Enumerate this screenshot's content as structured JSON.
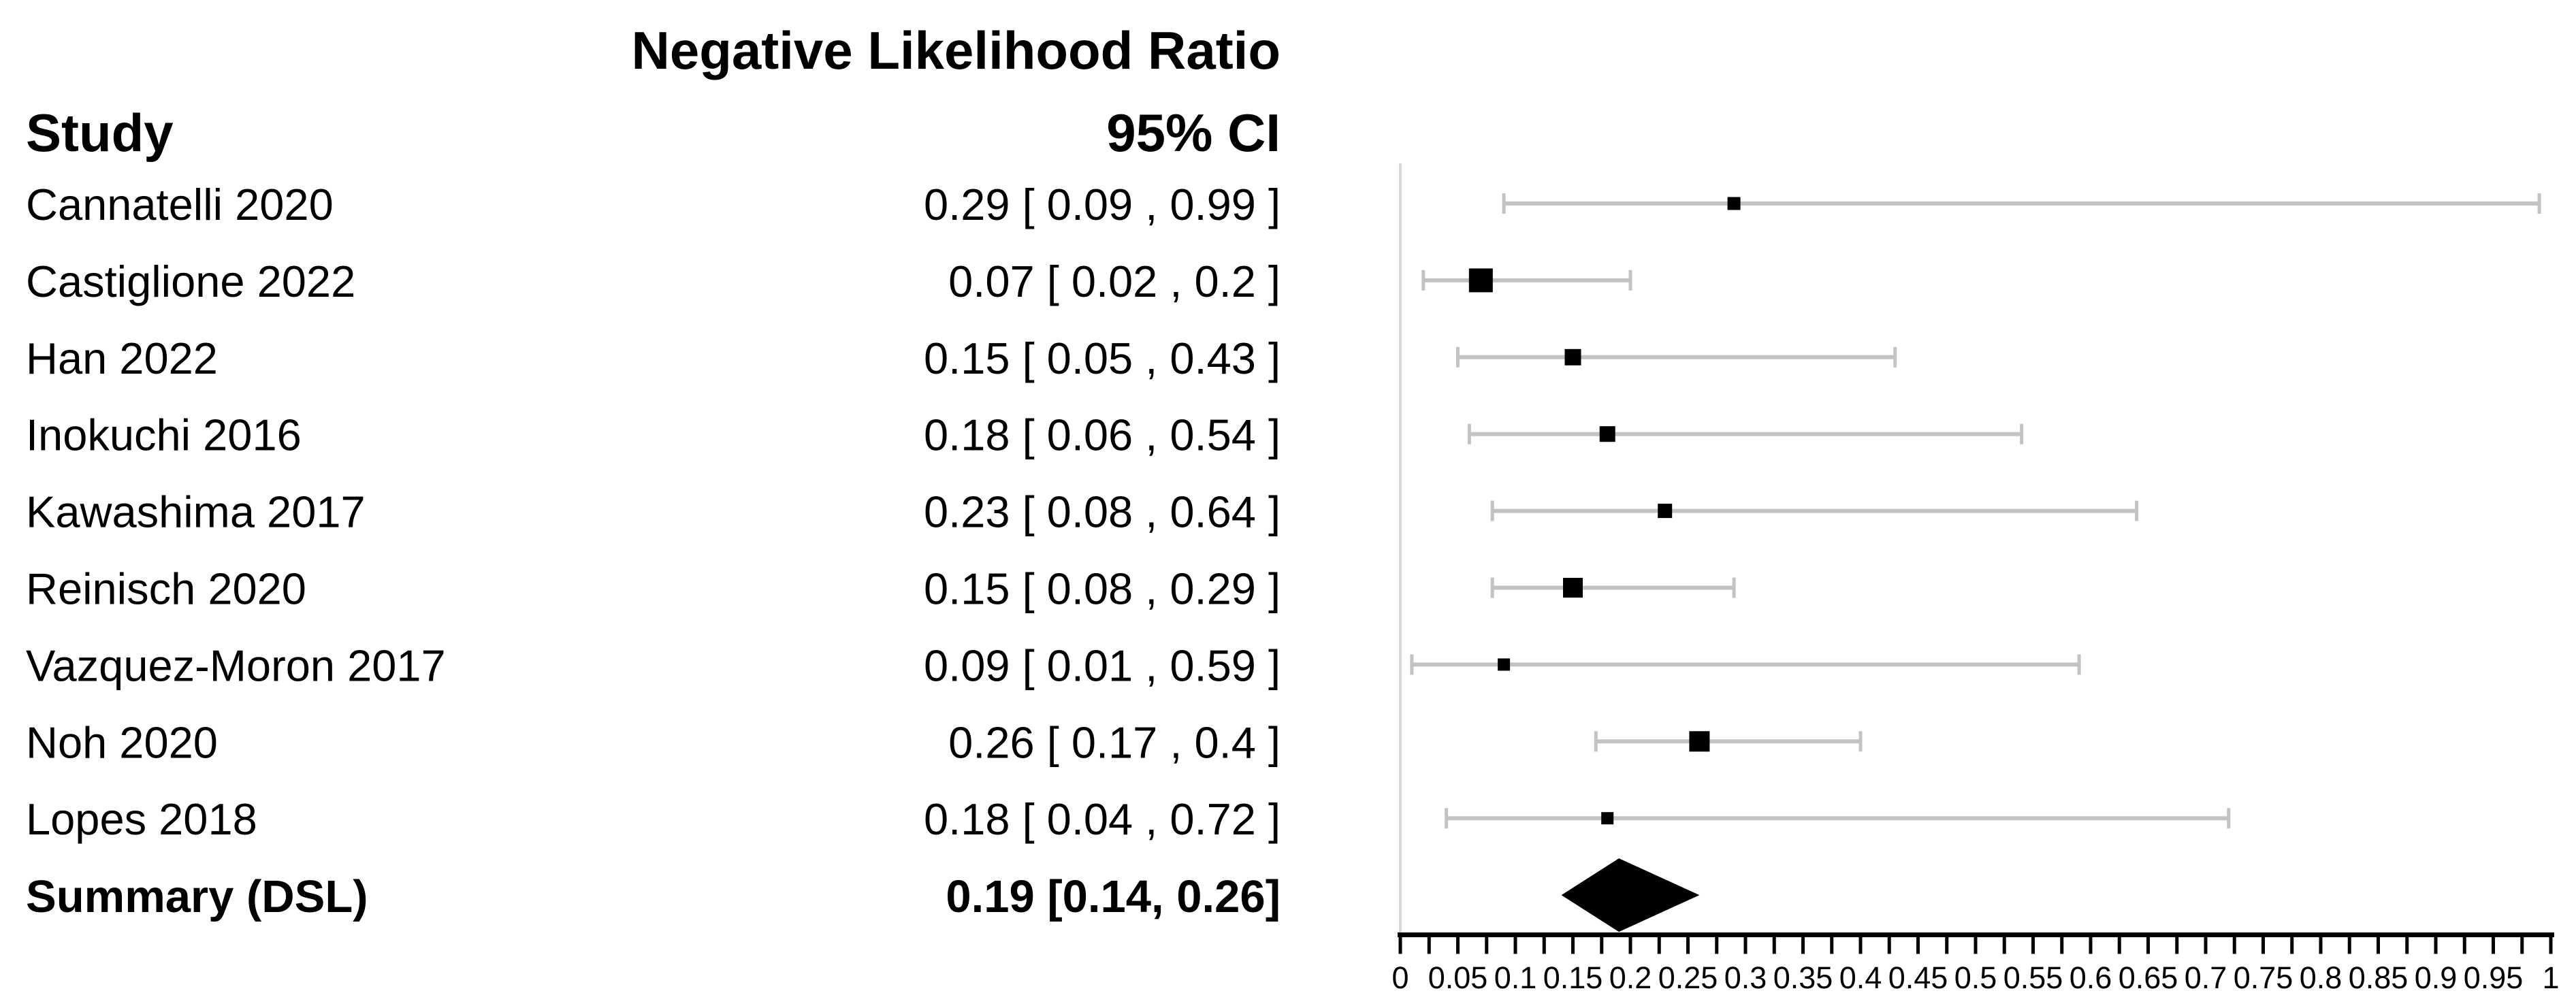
{
  "title": "Negative Likelihood Ratio",
  "headers": {
    "study": "Study",
    "ci": "95% CI"
  },
  "colors": {
    "marker": "#000000",
    "ci_line": "#c3c3c3",
    "ref_line": "#d8d8d8",
    "axis": "#000000",
    "text": "#000000",
    "background": "#ffffff"
  },
  "chart_data": {
    "type": "forest",
    "title": "Negative Likelihood Ratio",
    "column_headers": [
      "Study",
      "95% CI"
    ],
    "x_axis": {
      "min": 0,
      "max": 1,
      "minor_tick_step": 0.025,
      "label_step": 0.05,
      "tick_labels": [
        "0",
        "0.05",
        "0.1",
        "0.15",
        "0.2",
        "0.25",
        "0.3",
        "0.35",
        "0.4",
        "0.45",
        "0.5",
        "0.55",
        "0.6",
        "0.65",
        "0.7",
        "0.75",
        "0.8",
        "0.85",
        "0.9",
        "0.95",
        "1"
      ]
    },
    "studies": [
      {
        "study": "Cannatelli 2020",
        "ci_text": "0.29 [ 0.09 , 0.99 ]",
        "estimate": 0.29,
        "ci_lower": 0.09,
        "ci_upper": 0.99,
        "marker_size": 19
      },
      {
        "study": "Castiglione 2022",
        "ci_text": "0.07 [ 0.02 , 0.2 ]",
        "estimate": 0.07,
        "ci_lower": 0.02,
        "ci_upper": 0.2,
        "marker_size": 35
      },
      {
        "study": "Han 2022",
        "ci_text": "0.15 [ 0.05 , 0.43 ]",
        "estimate": 0.15,
        "ci_lower": 0.05,
        "ci_upper": 0.43,
        "marker_size": 24
      },
      {
        "study": "Inokuchi 2016",
        "ci_text": "0.18 [ 0.06 , 0.54 ]",
        "estimate": 0.18,
        "ci_lower": 0.06,
        "ci_upper": 0.54,
        "marker_size": 23
      },
      {
        "study": "Kawashima 2017",
        "ci_text": "0.23 [ 0.08 , 0.64 ]",
        "estimate": 0.23,
        "ci_lower": 0.08,
        "ci_upper": 0.64,
        "marker_size": 21
      },
      {
        "study": "Reinisch 2020",
        "ci_text": "0.15 [ 0.08 , 0.29 ]",
        "estimate": 0.15,
        "ci_lower": 0.08,
        "ci_upper": 0.29,
        "marker_size": 29
      },
      {
        "study": "Vazquez-Moron 2017",
        "ci_text": "0.09 [ 0.01 , 0.59 ]",
        "estimate": 0.09,
        "ci_lower": 0.01,
        "ci_upper": 0.59,
        "marker_size": 18
      },
      {
        "study": "Noh 2020",
        "ci_text": "0.26 [ 0.17 , 0.4 ]",
        "estimate": 0.26,
        "ci_lower": 0.17,
        "ci_upper": 0.4,
        "marker_size": 30
      },
      {
        "study": "Lopes 2018",
        "ci_text": "0.18 [ 0.04 , 0.72 ]",
        "estimate": 0.18,
        "ci_lower": 0.04,
        "ci_upper": 0.72,
        "marker_size": 18
      }
    ],
    "summary": {
      "study": "Summary (DSL)",
      "ci_text": "0.19 [0.14, 0.26]",
      "estimate": 0.19,
      "ci_lower": 0.14,
      "ci_upper": 0.26
    }
  }
}
